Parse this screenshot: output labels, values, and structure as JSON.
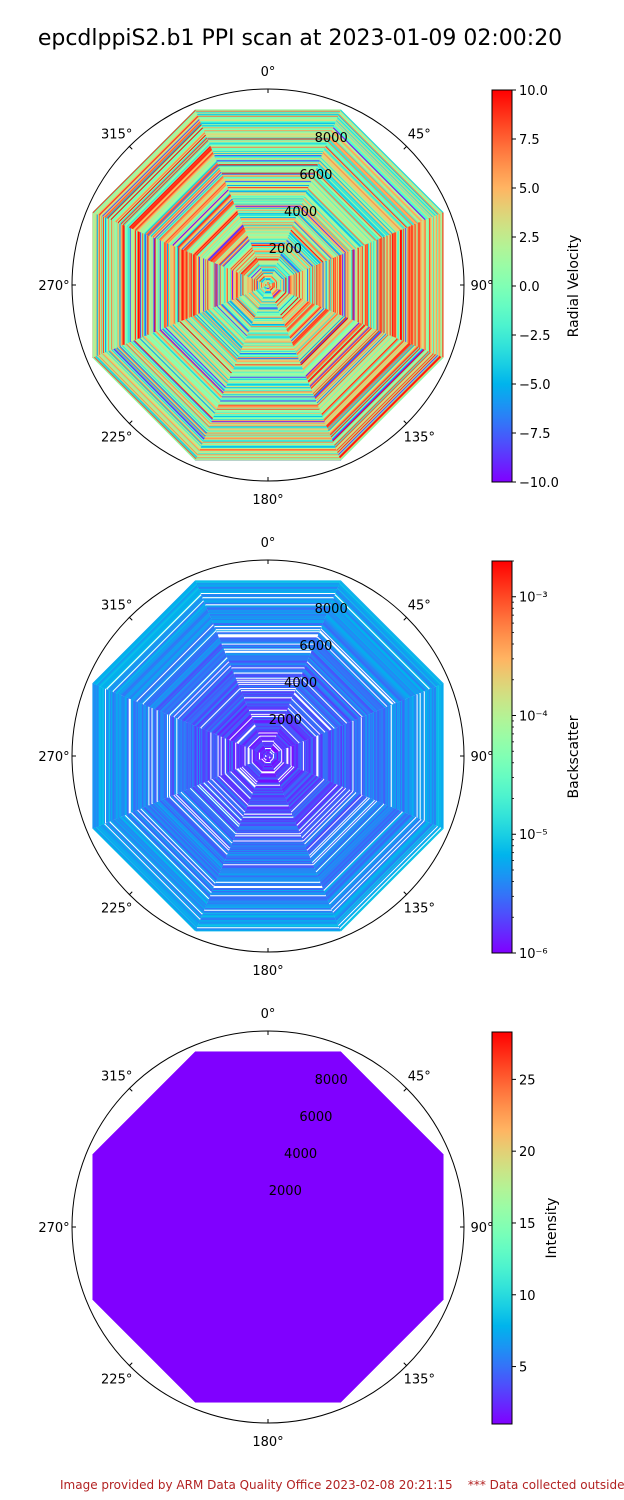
{
  "title": "epcdlppiS2.b1 PPI scan at 2023-01-09 02:00:20",
  "footer": "Image provided by ARM Data Quality Office 2023-02-08 20:21:15    *** Data collected outside",
  "chart_data": [
    {
      "type": "heatmap",
      "projection": "polar",
      "theta_direction": "clockwise",
      "theta_zero": "north",
      "angle_ticks": [
        "0°",
        "45°",
        "90°",
        "135°",
        "180°",
        "225°",
        "270°",
        "315°"
      ],
      "radial_ticks": [
        "2000",
        "4000",
        "6000",
        "8000"
      ],
      "colorbar": {
        "label": "Radial Velocity",
        "scale": "linear",
        "range": [
          -10.0,
          10.0
        ],
        "ticks": [
          "10.0",
          "7.5",
          "5.0",
          "2.5",
          "0.0",
          "−2.5",
          "−5.0",
          "−7.5",
          "−10.0"
        ]
      }
    },
    {
      "type": "heatmap",
      "projection": "polar",
      "theta_direction": "clockwise",
      "theta_zero": "north",
      "angle_ticks": [
        "0°",
        "45°",
        "90°",
        "135°",
        "180°",
        "225°",
        "270°",
        "315°"
      ],
      "radial_ticks": [
        "2000",
        "4000",
        "6000",
        "8000"
      ],
      "colorbar": {
        "label": "Backscatter",
        "scale": "log",
        "range": [
          1e-06,
          0.002
        ],
        "ticks": [
          "10⁻³",
          "10⁻⁴",
          "10⁻⁵",
          "10⁻⁶"
        ]
      }
    },
    {
      "type": "heatmap",
      "projection": "polar",
      "theta_direction": "clockwise",
      "theta_zero": "north",
      "angle_ticks": [
        "0°",
        "45°",
        "90°",
        "135°",
        "180°",
        "225°",
        "270°",
        "315°"
      ],
      "radial_ticks": [
        "2000",
        "4000",
        "6000",
        "8000"
      ],
      "colorbar": {
        "label": "Intensity",
        "scale": "linear",
        "range": [
          1.0,
          28.3
        ],
        "ticks": [
          "25",
          "20",
          "15",
          "10",
          "5"
        ]
      }
    }
  ]
}
